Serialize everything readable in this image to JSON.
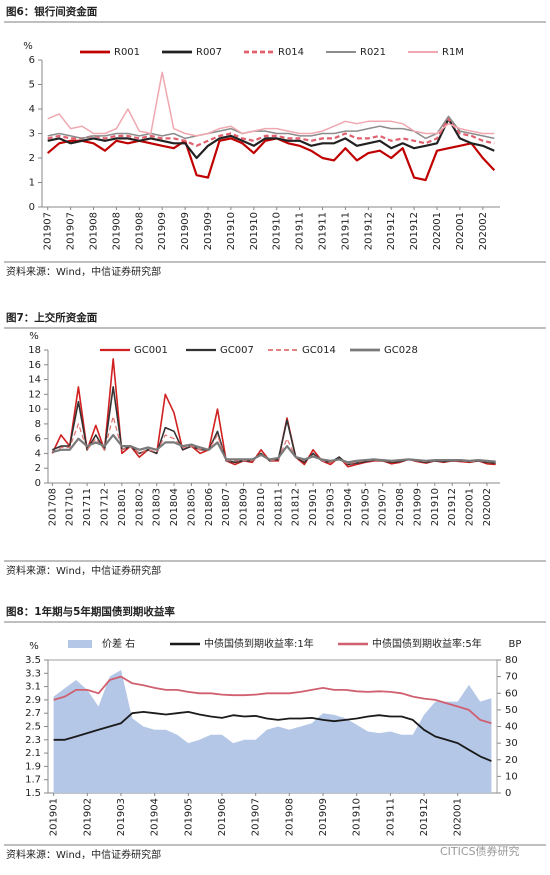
{
  "chart_data": [
    {
      "type": "line",
      "title": "图6：银行间资金面",
      "source": "资料来源：Wind，中信证券研究部",
      "y_label": "%",
      "categories": [
        "201907",
        null,
        "201907",
        null,
        "201908",
        null,
        "201908",
        null,
        "201908",
        null,
        "201909",
        null,
        "201909",
        null,
        "201909",
        null,
        "201910",
        null,
        "201910",
        null,
        "201910",
        null,
        "201911",
        null,
        "201911",
        null,
        "201911",
        null,
        "201912",
        null,
        "201912",
        null,
        "201912",
        null,
        "202001",
        null,
        "202001",
        null,
        "202002",
        null
      ],
      "ylim": [
        0,
        6
      ],
      "yticks": [
        0,
        1,
        2,
        3,
        4,
        5,
        6
      ],
      "series": [
        {
          "name": "R001",
          "color": "#c00000",
          "style": "line",
          "width": 2.2,
          "values": [
            2.2,
            2.6,
            2.7,
            2.7,
            2.6,
            2.3,
            2.7,
            2.6,
            2.7,
            2.6,
            2.5,
            2.4,
            2.7,
            1.3,
            1.2,
            2.7,
            2.8,
            2.6,
            2.2,
            2.7,
            2.8,
            2.6,
            2.5,
            2.3,
            2.0,
            1.9,
            2.4,
            1.9,
            2.2,
            2.3,
            2.0,
            2.4,
            1.2,
            1.1,
            2.3,
            2.4,
            2.5,
            2.6,
            2.0,
            1.5
          ]
        },
        {
          "name": "R007",
          "color": "#222222",
          "style": "line",
          "width": 2.2,
          "values": [
            2.7,
            2.8,
            2.6,
            2.7,
            2.8,
            2.7,
            2.8,
            2.8,
            2.7,
            2.8,
            2.7,
            2.6,
            2.6,
            2.0,
            2.5,
            2.8,
            2.9,
            2.7,
            2.5,
            2.8,
            2.8,
            2.7,
            2.7,
            2.5,
            2.6,
            2.6,
            2.8,
            2.5,
            2.6,
            2.7,
            2.4,
            2.6,
            2.4,
            2.5,
            2.6,
            3.6,
            2.8,
            2.6,
            2.5,
            2.3
          ]
        },
        {
          "name": "R014",
          "color": "#e0606e",
          "style": "dashed",
          "width": 2.2,
          "values": [
            2.8,
            2.9,
            2.8,
            2.8,
            2.9,
            2.8,
            2.9,
            2.9,
            2.8,
            2.9,
            2.8,
            2.8,
            2.7,
            2.5,
            2.7,
            2.9,
            3.0,
            2.8,
            2.7,
            2.9,
            2.9,
            2.8,
            2.8,
            2.7,
            2.8,
            2.8,
            3.0,
            2.8,
            2.8,
            2.9,
            2.7,
            2.8,
            2.7,
            2.6,
            2.8,
            3.6,
            3.0,
            2.9,
            2.7,
            2.6
          ]
        },
        {
          "name": "R021",
          "color": "#8c8c8c",
          "style": "line",
          "width": 1.5,
          "values": [
            2.9,
            3.0,
            2.9,
            2.8,
            2.9,
            2.9,
            3.0,
            3.0,
            2.9,
            3.0,
            2.9,
            3.0,
            2.8,
            2.9,
            3.0,
            3.1,
            3.2,
            3.0,
            3.1,
            3.1,
            3.0,
            3.0,
            2.9,
            2.9,
            3.0,
            3.0,
            3.1,
            3.1,
            3.2,
            3.3,
            3.2,
            3.2,
            3.1,
            2.8,
            3.0,
            3.7,
            3.1,
            3.0,
            2.9,
            2.8
          ]
        },
        {
          "name": "R1M",
          "color": "#f0a8b0",
          "style": "line",
          "width": 1.5,
          "values": [
            3.6,
            3.8,
            3.2,
            3.3,
            3.0,
            3.0,
            3.2,
            4.0,
            3.1,
            3.0,
            5.5,
            3.2,
            3.0,
            2.9,
            3.0,
            3.2,
            3.3,
            3.0,
            3.1,
            3.2,
            3.2,
            3.1,
            3.0,
            3.0,
            3.1,
            3.3,
            3.5,
            3.4,
            3.5,
            3.5,
            3.5,
            3.4,
            3.1,
            3.0,
            3.0,
            3.4,
            3.2,
            3.1,
            3.0,
            3.0
          ]
        }
      ]
    },
    {
      "type": "line",
      "title": "图7：上交所资金面",
      "source": "资料来源：Wind，中信证券研究部",
      "y_label": "%",
      "categories": [
        "201708",
        null,
        "201710",
        null,
        "201711",
        null,
        "201712",
        null,
        "201801",
        null,
        "201802",
        null,
        "201803",
        null,
        "201804",
        null,
        "201805",
        null,
        "201806",
        null,
        "201807",
        null,
        "201809",
        null,
        "201810",
        null,
        "201811",
        null,
        "201812",
        null,
        "201901",
        null,
        "201903",
        null,
        "201904",
        null,
        "201905",
        null,
        "201907",
        null,
        "201908",
        null,
        "201909",
        null,
        "201910",
        null,
        "201912",
        null,
        "202001",
        null,
        "202002",
        null
      ],
      "ylim": [
        0,
        18
      ],
      "yticks": [
        0,
        2,
        4,
        6,
        8,
        10,
        12,
        14,
        16,
        18
      ],
      "series": [
        {
          "name": "GC001",
          "color": "#d02020",
          "style": "line",
          "width": 1.6,
          "values": [
            4.0,
            6.5,
            5.0,
            13.0,
            4.5,
            7.8,
            4.5,
            16.8,
            4.0,
            5.0,
            3.5,
            4.5,
            4.0,
            12.0,
            9.5,
            4.5,
            5.0,
            4.0,
            4.5,
            10.0,
            3.0,
            2.5,
            3.0,
            2.8,
            4.5,
            3.0,
            3.0,
            8.8,
            3.5,
            2.5,
            4.5,
            3.0,
            2.5,
            3.5,
            2.2,
            2.5,
            2.8,
            3.0,
            3.0,
            2.6,
            2.8,
            3.2,
            2.9,
            2.7,
            3.0,
            2.8,
            3.0,
            2.9,
            2.8,
            3.0,
            2.6,
            2.5
          ]
        },
        {
          "name": "GC007",
          "color": "#333333",
          "style": "line",
          "width": 1.6,
          "values": [
            4.5,
            5.0,
            5.0,
            11.0,
            4.5,
            6.5,
            4.5,
            13.0,
            4.5,
            5.0,
            4.0,
            4.5,
            4.0,
            7.5,
            7.0,
            4.5,
            5.0,
            4.5,
            4.5,
            7.0,
            3.0,
            2.8,
            3.0,
            3.0,
            4.0,
            3.0,
            3.2,
            8.5,
            3.5,
            2.8,
            4.0,
            3.0,
            2.8,
            3.5,
            2.5,
            2.7,
            2.9,
            3.1,
            3.0,
            2.8,
            2.9,
            3.2,
            3.0,
            2.8,
            3.0,
            2.9,
            3.0,
            3.0,
            2.9,
            3.0,
            2.8,
            2.7
          ]
        },
        {
          "name": "GC014",
          "color": "#e07070",
          "style": "dashed",
          "width": 1.2,
          "values": [
            4.0,
            4.8,
            4.8,
            8.0,
            4.5,
            6.0,
            4.5,
            9.0,
            4.5,
            5.0,
            4.0,
            4.5,
            4.2,
            6.5,
            6.0,
            4.8,
            5.0,
            4.5,
            4.5,
            6.5,
            3.0,
            3.0,
            3.0,
            3.0,
            3.8,
            3.0,
            3.2,
            6.0,
            3.5,
            3.0,
            3.8,
            3.0,
            2.8,
            3.2,
            2.6,
            2.8,
            3.0,
            3.1,
            3.0,
            2.9,
            3.0,
            3.2,
            3.0,
            2.9,
            3.0,
            3.0,
            3.0,
            3.0,
            2.9,
            3.0,
            2.9,
            2.8
          ]
        },
        {
          "name": "GC028",
          "color": "#7a7a7a",
          "style": "line",
          "width": 2.2,
          "values": [
            4.2,
            4.5,
            4.5,
            6.0,
            5.0,
            5.5,
            5.0,
            6.5,
            5.0,
            5.0,
            4.5,
            4.8,
            4.5,
            5.5,
            5.5,
            5.0,
            5.2,
            4.8,
            4.5,
            5.5,
            3.2,
            3.2,
            3.2,
            3.2,
            3.8,
            3.2,
            3.4,
            5.0,
            3.5,
            3.2,
            3.6,
            3.2,
            3.0,
            3.2,
            2.8,
            3.0,
            3.1,
            3.2,
            3.1,
            3.0,
            3.1,
            3.2,
            3.1,
            3.0,
            3.1,
            3.1,
            3.1,
            3.1,
            3.0,
            3.1,
            3.0,
            2.9
          ]
        }
      ]
    },
    {
      "type": "line",
      "title": "图8：1年期与5年期国债到期收益率",
      "source": "资料来源：Wind，中信证券研究部",
      "y_label": "%",
      "y2_label": "BP",
      "categories": [
        "201901",
        null,
        null,
        "201902",
        null,
        null,
        "201903",
        null,
        null,
        "201904",
        null,
        null,
        "201905",
        null,
        null,
        "201906",
        null,
        null,
        "201907",
        null,
        null,
        "201908",
        null,
        null,
        "201909",
        null,
        null,
        "201910",
        null,
        null,
        "201911",
        null,
        null,
        "201912",
        null,
        null,
        "202001",
        null,
        null,
        null
      ],
      "ylim": [
        1.5,
        3.5
      ],
      "yticks": [
        1.5,
        1.7,
        1.9,
        2.1,
        2.3,
        2.5,
        2.7,
        2.9,
        3.1,
        3.3,
        3.5
      ],
      "y2lim": [
        0,
        80
      ],
      "y2ticks": [
        0,
        10,
        20,
        30,
        40,
        50,
        60,
        70,
        80
      ],
      "series": [
        {
          "name": "价差 右",
          "color": "#b4c7e7",
          "style": "area",
          "axis": "y2",
          "values": [
            58,
            63,
            68,
            62,
            52,
            70,
            74,
            45,
            40,
            38,
            38,
            35,
            30,
            32,
            35,
            35,
            30,
            32,
            32,
            38,
            40,
            38,
            40,
            42,
            48,
            47,
            45,
            41,
            37,
            36,
            37,
            35,
            35,
            47,
            55,
            55,
            55,
            65,
            55,
            57
          ]
        },
        {
          "name": "中债国债到期收益率:1年",
          "color": "#1a1a1a",
          "style": "line",
          "width": 1.8,
          "values": [
            2.3,
            2.3,
            2.35,
            2.4,
            2.45,
            2.5,
            2.55,
            2.7,
            2.72,
            2.7,
            2.68,
            2.7,
            2.72,
            2.68,
            2.65,
            2.63,
            2.67,
            2.65,
            2.66,
            2.62,
            2.6,
            2.62,
            2.62,
            2.63,
            2.6,
            2.58,
            2.6,
            2.62,
            2.65,
            2.67,
            2.65,
            2.65,
            2.6,
            2.45,
            2.35,
            2.3,
            2.25,
            2.15,
            2.05,
            1.98
          ]
        },
        {
          "name": "中债国债到期收益率:5年",
          "color": "#d06070",
          "style": "line",
          "width": 1.8,
          "values": [
            2.9,
            2.95,
            3.05,
            3.05,
            3.0,
            3.2,
            3.25,
            3.15,
            3.12,
            3.08,
            3.05,
            3.05,
            3.02,
            3.0,
            3.0,
            2.98,
            2.97,
            2.97,
            2.98,
            3.0,
            3.0,
            3.0,
            3.02,
            3.05,
            3.08,
            3.05,
            3.05,
            3.03,
            3.02,
            3.03,
            3.02,
            3.0,
            2.95,
            2.92,
            2.9,
            2.85,
            2.8,
            2.75,
            2.6,
            2.55
          ]
        }
      ]
    }
  ],
  "watermark": "CITICS债券研究"
}
